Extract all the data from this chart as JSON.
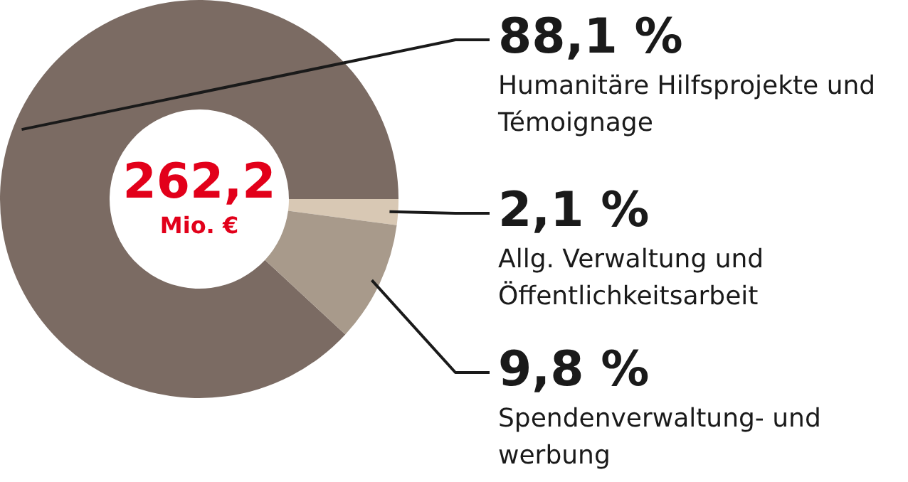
{
  "chart_data": {
    "type": "donut",
    "categories": [
      "Humanitäre Hilfsprojekte und Témoignage",
      "Allg. Verwaltung und Öffentlichkeitsarbeit",
      "Spendenverwaltung- und werbung"
    ],
    "values": [
      88.1,
      2.1,
      9.8
    ],
    "colors": [
      "#7b6b63",
      "#d8c8b4",
      "#a89a8b"
    ],
    "value_labels": [
      "88,1 %",
      "2,1 %",
      "9,8 %"
    ],
    "annotations": [
      "262,2",
      "Mio. €"
    ],
    "legend": false
  }
}
